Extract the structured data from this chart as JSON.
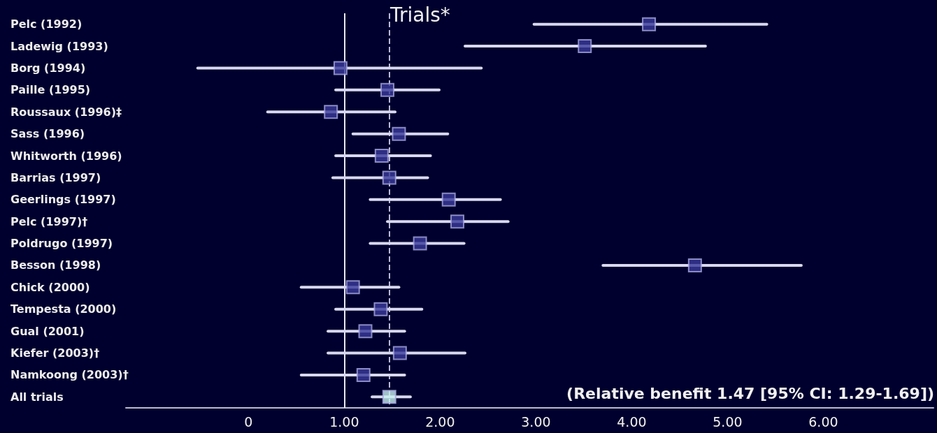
{
  "chart_data": {
    "type": "scatter",
    "orientation": "horizontal",
    "title": "Trials*",
    "categories": [
      "Pelc (1992)",
      "Ladewig (1993)",
      "Borg (1994)",
      "Paille (1995)",
      "Roussaux (1996)‡",
      "Sass (1996)",
      "Whitworth (1996)",
      "Barrias (1997)",
      "Geerlings (1997)",
      "Pelc (1997)†",
      "Poldrugo (1997)",
      "Besson (1998)",
      "Chick (2000)",
      "Tempesta (2000)",
      "Gual (2001)",
      "Kiefer (2003)†",
      "Namkoong (2003)†",
      "All trials"
    ],
    "values": [
      4.18,
      3.51,
      0.96,
      1.45,
      0.86,
      1.57,
      1.39,
      1.47,
      2.09,
      2.18,
      1.79,
      4.66,
      1.09,
      1.38,
      1.22,
      1.58,
      1.2,
      1.47
    ],
    "errors": [
      [
        2.98,
        5.41
      ],
      [
        2.26,
        4.77
      ],
      [
        -0.53,
        2.43
      ],
      [
        0.91,
        1.99
      ],
      [
        0.2,
        1.53
      ],
      [
        1.09,
        2.08
      ],
      [
        0.91,
        1.9
      ],
      [
        0.88,
        1.87
      ],
      [
        1.27,
        2.63
      ],
      [
        1.45,
        2.71
      ],
      [
        1.27,
        2.25
      ],
      [
        3.7,
        5.77
      ],
      [
        0.55,
        1.57
      ],
      [
        0.91,
        1.81
      ],
      [
        0.83,
        1.63
      ],
      [
        0.83,
        2.26
      ],
      [
        0.55,
        1.63
      ],
      [
        1.29,
        1.69
      ]
    ],
    "colors": [
      "#3a3a9a",
      "#3a3a9a",
      "#3a3a9a",
      "#3a3a9a",
      "#3a3a9a",
      "#3a3a9a",
      "#3a3a9a",
      "#3a3a9a",
      "#3a3a9a",
      "#3a3a9a",
      "#3a3a9a",
      "#3a3a9a",
      "#3a3a9a",
      "#3a3a9a",
      "#3a3a9a",
      "#3a3a9a",
      "#3a3a9a",
      "#c8f0f0"
    ],
    "xlim": [
      -1.28,
      7.15
    ],
    "xticks": [
      0,
      {
        "value": 1,
        "label": "1.00"
      },
      {
        "value": 2,
        "label": "2.00"
      },
      {
        "value": 3,
        "label": "3.00"
      },
      {
        "value": 4,
        "label": "4.00"
      },
      {
        "value": 5,
        "label": "5.00"
      },
      {
        "value": 6,
        "label": "6.00"
      }
    ],
    "ref_lines": [
      {
        "axis": "x",
        "value": 1,
        "color": "#e8e8f8",
        "line_style": "solid"
      },
      {
        "axis": "x",
        "value": 1.47,
        "color": "#b8b8d8",
        "line_style": "dashed"
      }
    ],
    "annotations": [
      "(Relative benefit 1.47 [95% CI: 1.29-1.69])"
    ],
    "marker": "square",
    "grid": false,
    "legend": false
  }
}
